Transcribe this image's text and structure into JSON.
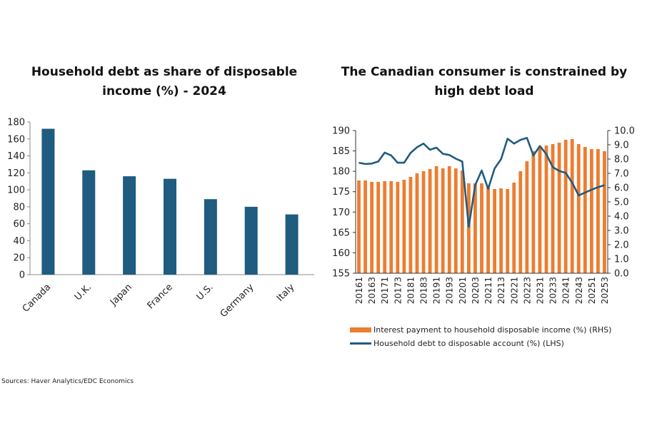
{
  "chart_data": [
    {
      "type": "bar",
      "title": "Household debt as share of disposable income (%) - 2024",
      "title_lines": [
        "Household debt as share of disposable",
        "income (%) - 2024"
      ],
      "categories": [
        "Canada",
        "U.K.",
        "Japan",
        "France",
        "U.S.",
        "Germany",
        "Italy"
      ],
      "values": [
        172,
        123,
        116,
        113,
        89,
        80,
        71
      ],
      "ylim": [
        0,
        180
      ],
      "yticks": [
        0,
        20,
        40,
        60,
        80,
        100,
        120,
        140,
        160,
        180
      ],
      "grid": false,
      "color": "#1F5C7F"
    },
    {
      "type": "bar+line",
      "title": "The Canadian consumer is constrained by high debt load",
      "title_lines": [
        "The Canadian consumer is constrained by",
        "high debt load"
      ],
      "x": [
        "20161",
        "20162",
        "20163",
        "20164",
        "20171",
        "20172",
        "20173",
        "20174",
        "20181",
        "20182",
        "20183",
        "20184",
        "20191",
        "20192",
        "20193",
        "20194",
        "20201",
        "20202",
        "20203",
        "20204",
        "20211",
        "20212",
        "20213",
        "20214",
        "20221",
        "20222",
        "20223",
        "20224",
        "20231",
        "20232",
        "20233",
        "20234",
        "20241",
        "20242",
        "20243",
        "20244",
        "20251",
        "20252",
        "20253"
      ],
      "xtick_labels": [
        "20161",
        "20163",
        "20171",
        "20173",
        "20181",
        "20183",
        "20191",
        "20193",
        "20201",
        "20203",
        "20211",
        "20213",
        "20221",
        "20223",
        "20231",
        "20233",
        "20241",
        "20243",
        "20251",
        "20253"
      ],
      "series": [
        {
          "name": "Interest payment to household disposable income (%) (RHS)",
          "type": "bar",
          "axis": "right",
          "color": "#ED7D31",
          "values": [
            6.5,
            6.5,
            6.4,
            6.4,
            6.45,
            6.45,
            6.4,
            6.55,
            6.75,
            7.0,
            7.15,
            7.3,
            7.5,
            7.35,
            7.5,
            7.35,
            7.2,
            6.3,
            6.3,
            6.3,
            6.1,
            5.9,
            5.95,
            5.9,
            6.35,
            7.15,
            7.85,
            8.55,
            8.8,
            8.95,
            9.05,
            9.15,
            9.35,
            9.4,
            9.05,
            8.85,
            8.7,
            8.7,
            8.55
          ]
        },
        {
          "name": "Household debt to disposable account (%) (LHS)",
          "type": "line",
          "axis": "left",
          "color": "#1F5C7F",
          "values": [
            182.1,
            181.8,
            181.9,
            182.4,
            184.6,
            183.9,
            182.1,
            182.1,
            184.5,
            185.9,
            186.8,
            185.3,
            185.8,
            184.3,
            184.0,
            183.1,
            182.4,
            166.4,
            176.6,
            180.2,
            175.7,
            180.7,
            183.0,
            188.0,
            186.8,
            187.7,
            188.2,
            183.9,
            186.2,
            184.2,
            181.0,
            180.1,
            179.6,
            177.2,
            174.1,
            174.8,
            175.5,
            176.1,
            176.6
          ]
        }
      ],
      "ylim_left": [
        155,
        190
      ],
      "yticks_left": [
        "155",
        "160",
        "165",
        "170",
        "175",
        "180",
        "185",
        "190"
      ],
      "ylim_right": [
        0,
        10
      ],
      "yticks_right": [
        "0.0",
        "1.0",
        "2.0",
        "3.0",
        "4.0",
        "5.0",
        "6.0",
        "7.0",
        "8.0",
        "9.0",
        "10.0"
      ],
      "grid": false,
      "legend_position": "bottom"
    }
  ],
  "source": "Sources: Haver Analytics/EDC Economics"
}
